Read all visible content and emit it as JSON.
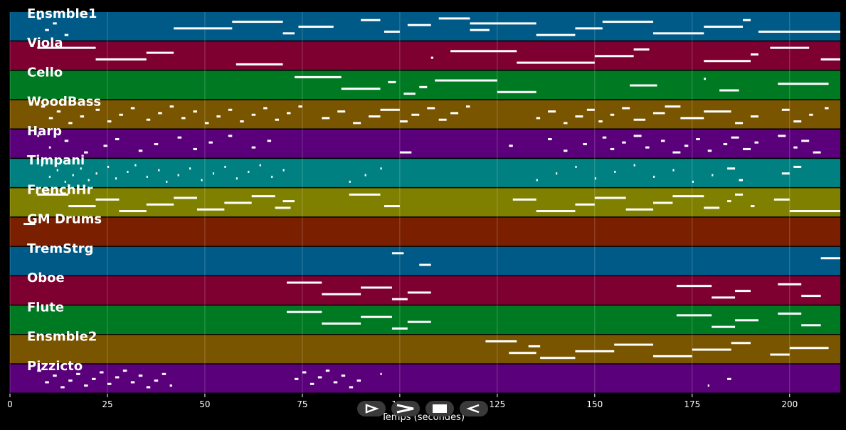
{
  "chart_data": {
    "type": "piano-roll",
    "xlabel": "Temps (secondes)",
    "xlim": [
      0,
      213
    ],
    "xticks": [
      0,
      25,
      50,
      75,
      100,
      125,
      150,
      175,
      200
    ],
    "grid": true,
    "tracks": [
      {
        "name": "Ensmble1",
        "color": "#005a87",
        "segments": [
          [
            7,
            8
          ],
          [
            9,
            10
          ],
          [
            11,
            12
          ],
          [
            14,
            15
          ],
          [
            42,
            57
          ],
          [
            57,
            70
          ],
          [
            70,
            73
          ],
          [
            74,
            83
          ],
          [
            90,
            95
          ],
          [
            96,
            100
          ],
          [
            102,
            108
          ],
          [
            110,
            118
          ],
          [
            118,
            123
          ],
          [
            118,
            135
          ],
          [
            135,
            145
          ],
          [
            145,
            152
          ],
          [
            152,
            165
          ],
          [
            165,
            178
          ],
          [
            178,
            188
          ],
          [
            188,
            190
          ],
          [
            192,
            213
          ]
        ]
      },
      {
        "name": "Viola",
        "color": "#7e0030",
        "segments": [
          [
            7,
            22
          ],
          [
            22,
            35
          ],
          [
            35,
            42
          ],
          [
            58,
            70
          ],
          [
            108,
            108.6
          ],
          [
            113,
            130
          ],
          [
            130,
            150
          ],
          [
            150,
            160
          ],
          [
            160,
            164
          ],
          [
            178,
            190
          ],
          [
            190,
            192
          ],
          [
            195,
            205
          ],
          [
            208,
            213
          ]
        ]
      },
      {
        "name": "Cello",
        "color": "#007a22",
        "segments": [
          [
            73,
            85
          ],
          [
            85,
            95
          ],
          [
            97,
            99
          ],
          [
            101,
            104
          ],
          [
            105,
            107
          ],
          [
            109,
            125
          ],
          [
            125,
            135
          ],
          [
            159,
            166
          ],
          [
            178,
            178.5
          ],
          [
            182,
            187
          ],
          [
            197,
            210
          ]
        ]
      },
      {
        "name": "WoodBass",
        "color": "#7a5500",
        "segments": [
          [
            8,
            9
          ],
          [
            10,
            11
          ],
          [
            12,
            13
          ],
          [
            15,
            16
          ],
          [
            18,
            19
          ],
          [
            22,
            23
          ],
          [
            25,
            26
          ],
          [
            28,
            29
          ],
          [
            31,
            32
          ],
          [
            35,
            36
          ],
          [
            38,
            39
          ],
          [
            41,
            42
          ],
          [
            44,
            45
          ],
          [
            47,
            48
          ],
          [
            50,
            51
          ],
          [
            53,
            54
          ],
          [
            56,
            57
          ],
          [
            59,
            60
          ],
          [
            62,
            63
          ],
          [
            65,
            66
          ],
          [
            68,
            69
          ],
          [
            71,
            72
          ],
          [
            74,
            75
          ],
          [
            80,
            82
          ],
          [
            84,
            86
          ],
          [
            88,
            90
          ],
          [
            92,
            95
          ],
          [
            95,
            100
          ],
          [
            100,
            102
          ],
          [
            103,
            105
          ],
          [
            107,
            109
          ],
          [
            110,
            112
          ],
          [
            113,
            115
          ],
          [
            117,
            118
          ],
          [
            135,
            136
          ],
          [
            138,
            140
          ],
          [
            142,
            143
          ],
          [
            145,
            147
          ],
          [
            148,
            150
          ],
          [
            151,
            152
          ],
          [
            154,
            155
          ],
          [
            157,
            159
          ],
          [
            160,
            163
          ],
          [
            165,
            168
          ],
          [
            168,
            172
          ],
          [
            172,
            178
          ],
          [
            178,
            185
          ],
          [
            186,
            188
          ],
          [
            190,
            192
          ],
          [
            198,
            200
          ],
          [
            201,
            203
          ],
          [
            205,
            206
          ],
          [
            209,
            210
          ]
        ]
      },
      {
        "name": "Harp",
        "color": "#5a007a",
        "segments": [
          [
            7,
            7.5
          ],
          [
            10,
            10.5
          ],
          [
            14,
            15
          ],
          [
            19,
            20
          ],
          [
            24,
            25
          ],
          [
            27,
            28
          ],
          [
            33,
            34
          ],
          [
            37,
            38
          ],
          [
            43,
            44
          ],
          [
            47,
            48
          ],
          [
            51,
            52
          ],
          [
            56,
            57
          ],
          [
            62,
            63
          ],
          [
            66,
            67
          ],
          [
            100,
            103
          ],
          [
            128,
            129
          ],
          [
            138,
            139
          ],
          [
            142,
            143
          ],
          [
            147,
            148
          ],
          [
            152,
            153
          ],
          [
            154,
            155
          ],
          [
            157,
            158
          ],
          [
            160,
            162
          ],
          [
            163,
            164
          ],
          [
            167,
            168
          ],
          [
            170,
            172
          ],
          [
            173,
            174
          ],
          [
            176,
            177
          ],
          [
            179,
            180
          ],
          [
            183,
            184
          ],
          [
            185,
            187
          ],
          [
            188,
            190
          ],
          [
            191,
            192
          ],
          [
            197,
            199
          ],
          [
            201,
            202
          ],
          [
            203,
            205
          ],
          [
            206,
            208
          ]
        ]
      },
      {
        "name": "Timpani",
        "color": "#008080",
        "segments": [
          [
            8,
            8.4
          ],
          [
            10,
            10.4
          ],
          [
            12,
            12.4
          ],
          [
            14,
            14.4
          ],
          [
            16,
            16.4
          ],
          [
            18,
            18.4
          ],
          [
            20,
            20.4
          ],
          [
            22,
            22.4
          ],
          [
            25,
            25.4
          ],
          [
            27,
            27.4
          ],
          [
            30,
            30.4
          ],
          [
            32,
            32.4
          ],
          [
            35,
            35.4
          ],
          [
            38,
            38.4
          ],
          [
            40,
            40.4
          ],
          [
            43,
            43.4
          ],
          [
            46,
            46.4
          ],
          [
            49,
            49.4
          ],
          [
            52,
            52.4
          ],
          [
            55,
            55.4
          ],
          [
            58,
            58.4
          ],
          [
            61,
            61.4
          ],
          [
            64,
            64.4
          ],
          [
            67,
            67.4
          ],
          [
            70,
            70.4
          ],
          [
            87,
            87.4
          ],
          [
            91,
            91.4
          ],
          [
            95,
            95.4
          ],
          [
            135,
            135.4
          ],
          [
            140,
            140.4
          ],
          [
            145,
            145.4
          ],
          [
            150,
            150.4
          ],
          [
            155,
            155.4
          ],
          [
            160,
            160.4
          ],
          [
            165,
            165.4
          ],
          [
            170,
            170.4
          ],
          [
            175,
            175.4
          ],
          [
            180,
            180.4
          ],
          [
            184,
            186
          ],
          [
            187,
            188
          ],
          [
            198,
            200
          ],
          [
            201,
            203
          ]
        ]
      },
      {
        "name": "FrenchHr",
        "color": "#808000",
        "segments": [
          [
            7,
            15
          ],
          [
            15,
            22
          ],
          [
            22,
            28
          ],
          [
            28,
            35
          ],
          [
            35,
            42
          ],
          [
            42,
            48
          ],
          [
            48,
            55
          ],
          [
            55,
            62
          ],
          [
            62,
            68
          ],
          [
            68,
            72
          ],
          [
            70,
            73
          ],
          [
            87,
            95
          ],
          [
            96,
            100
          ],
          [
            129,
            135
          ],
          [
            135,
            145
          ],
          [
            145,
            150
          ],
          [
            150,
            158
          ],
          [
            158,
            165
          ],
          [
            165,
            170
          ],
          [
            170,
            178
          ],
          [
            178,
            182
          ],
          [
            184,
            185
          ],
          [
            186,
            188
          ],
          [
            190,
            191
          ],
          [
            196,
            200
          ],
          [
            200,
            213
          ]
        ]
      },
      {
        "name": "GM Drums",
        "color": "#7a2000",
        "segments": [
          [
            3.5,
            6.5
          ]
        ]
      },
      {
        "name": "TremStrg",
        "color": "#005a87",
        "segments": [
          [
            98,
            101
          ],
          [
            105,
            108
          ],
          [
            208,
            213
          ]
        ]
      },
      {
        "name": "Oboe",
        "color": "#7e0030",
        "segments": [
          [
            71,
            80
          ],
          [
            80,
            90
          ],
          [
            90,
            98
          ],
          [
            98,
            102
          ],
          [
            102,
            108
          ],
          [
            171,
            180
          ],
          [
            180,
            186
          ],
          [
            186,
            190
          ],
          [
            197,
            203
          ],
          [
            203,
            208
          ]
        ]
      },
      {
        "name": "Flute",
        "color": "#007a22",
        "segments": [
          [
            71,
            80
          ],
          [
            80,
            90
          ],
          [
            90,
            98
          ],
          [
            98,
            102
          ],
          [
            102,
            108
          ],
          [
            171,
            180
          ],
          [
            180,
            186
          ],
          [
            186,
            192
          ],
          [
            197,
            203
          ],
          [
            203,
            208
          ]
        ]
      },
      {
        "name": "Ensmble2",
        "color": "#7a5500",
        "segments": [
          [
            122,
            130
          ],
          [
            128,
            135
          ],
          [
            133,
            136
          ],
          [
            136,
            145
          ],
          [
            145,
            155
          ],
          [
            155,
            165
          ],
          [
            165,
            175
          ],
          [
            175,
            185
          ],
          [
            185,
            190
          ],
          [
            195,
            200
          ],
          [
            200,
            210
          ]
        ]
      },
      {
        "name": "Pizzicto",
        "color": "#5a007a",
        "segments": [
          [
            7,
            8
          ],
          [
            9,
            10
          ],
          [
            11,
            12
          ],
          [
            13,
            14
          ],
          [
            15,
            16
          ],
          [
            17,
            18
          ],
          [
            19,
            20
          ],
          [
            21,
            22
          ],
          [
            23,
            24
          ],
          [
            25,
            26
          ],
          [
            27,
            28
          ],
          [
            29,
            30
          ],
          [
            31,
            32
          ],
          [
            33,
            34
          ],
          [
            35,
            36
          ],
          [
            37,
            38
          ],
          [
            39,
            40
          ],
          [
            41,
            41.6
          ],
          [
            73,
            74
          ],
          [
            75,
            76
          ],
          [
            77,
            78
          ],
          [
            79,
            80
          ],
          [
            81,
            82
          ],
          [
            83,
            84
          ],
          [
            85,
            86
          ],
          [
            87,
            88
          ],
          [
            89,
            90
          ],
          [
            95,
            95.4
          ],
          [
            179,
            179.4
          ],
          [
            184,
            185
          ]
        ]
      }
    ]
  },
  "controls": {
    "items": [
      {
        "name": "play-icon"
      },
      {
        "name": "fast-forward-icon"
      },
      {
        "name": "stop-icon"
      },
      {
        "name": "rewind-icon"
      }
    ]
  }
}
